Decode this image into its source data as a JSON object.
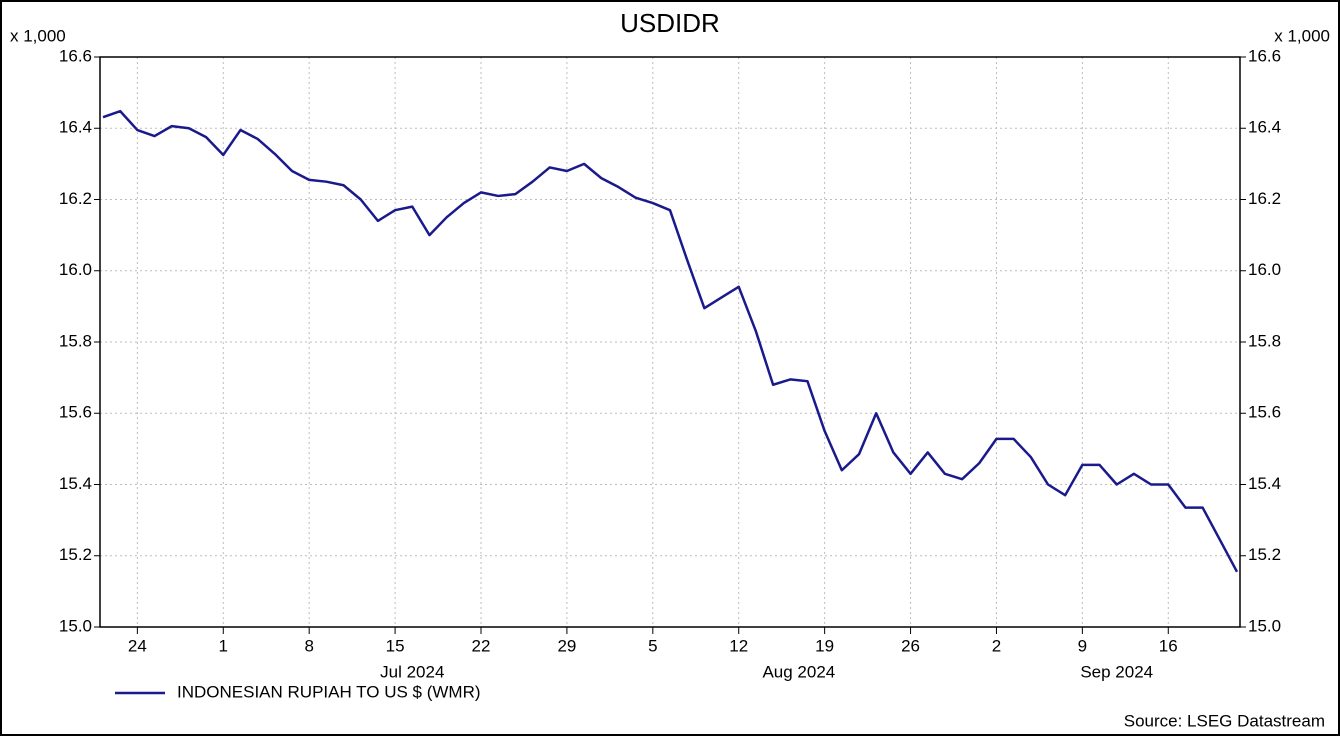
{
  "chart_data": {
    "type": "line",
    "title": "USDIDR",
    "y_unit": "x 1,000",
    "y2_unit": "x 1,000",
    "source": "Source: LSEG Datastream",
    "x": [
      "2024-06-20",
      "2024-06-21",
      "2024-06-24",
      "2024-06-25",
      "2024-06-26",
      "2024-06-27",
      "2024-06-28",
      "2024-07-01",
      "2024-07-02",
      "2024-07-03",
      "2024-07-04",
      "2024-07-05",
      "2024-07-08",
      "2024-07-09",
      "2024-07-10",
      "2024-07-11",
      "2024-07-12",
      "2024-07-15",
      "2024-07-16",
      "2024-07-17",
      "2024-07-18",
      "2024-07-19",
      "2024-07-22",
      "2024-07-23",
      "2024-07-24",
      "2024-07-25",
      "2024-07-26",
      "2024-07-29",
      "2024-07-30",
      "2024-07-31",
      "2024-08-01",
      "2024-08-02",
      "2024-08-05",
      "2024-08-06",
      "2024-08-07",
      "2024-08-08",
      "2024-08-09",
      "2024-08-12",
      "2024-08-13",
      "2024-08-14",
      "2024-08-15",
      "2024-08-16",
      "2024-08-19",
      "2024-08-20",
      "2024-08-21",
      "2024-08-22",
      "2024-08-23",
      "2024-08-26",
      "2024-08-27",
      "2024-08-28",
      "2024-08-29",
      "2024-08-30",
      "2024-09-02",
      "2024-09-03",
      "2024-09-04",
      "2024-09-05",
      "2024-09-06",
      "2024-09-09",
      "2024-09-10",
      "2024-09-11",
      "2024-09-12",
      "2024-09-13",
      "2024-09-16",
      "2024-09-17",
      "2024-09-18",
      "2024-09-19",
      "2024-09-20"
    ],
    "series": [
      {
        "name": "INDONESIAN RUPIAH TO US $ (WMR)",
        "color": "#1a1a8c",
        "values": [
          16.431,
          16.448,
          16.395,
          16.378,
          16.406,
          16.4,
          16.375,
          16.325,
          16.395,
          16.37,
          16.328,
          16.28,
          16.255,
          16.25,
          16.24,
          16.2,
          16.14,
          16.17,
          16.18,
          16.1,
          16.15,
          16.19,
          16.22,
          16.21,
          16.215,
          16.25,
          16.29,
          16.28,
          16.3,
          16.26,
          16.235,
          16.205,
          16.19,
          16.17,
          16.03,
          15.895,
          15.925,
          15.955,
          15.83,
          15.68,
          15.695,
          15.69,
          15.55,
          15.44,
          15.485,
          15.6,
          15.49,
          15.43,
          15.49,
          15.43,
          15.415,
          15.46,
          15.528,
          15.528,
          15.477,
          15.4,
          15.37,
          15.455,
          15.455,
          15.4,
          15.43,
          15.4,
          15.4,
          15.335,
          15.335,
          15.245,
          15.155
        ]
      }
    ],
    "xlim": [
      "2024-06-20",
      "2024-09-20"
    ],
    "xticks": [
      {
        "value": "2024-06-24",
        "label": "24"
      },
      {
        "value": "2024-07-01",
        "label": "1"
      },
      {
        "value": "2024-07-08",
        "label": "8"
      },
      {
        "value": "2024-07-15",
        "label": "15"
      },
      {
        "value": "2024-07-22",
        "label": "22"
      },
      {
        "value": "2024-07-29",
        "label": "29"
      },
      {
        "value": "2024-08-05",
        "label": "5"
      },
      {
        "value": "2024-08-12",
        "label": "12"
      },
      {
        "value": "2024-08-19",
        "label": "19"
      },
      {
        "value": "2024-08-26",
        "label": "26"
      },
      {
        "value": "2024-09-02",
        "label": "2"
      },
      {
        "value": "2024-09-09",
        "label": "9"
      },
      {
        "value": "2024-09-16",
        "label": "16"
      }
    ],
    "month_labels": [
      {
        "value": "2024-07",
        "label": "Jul 2024"
      },
      {
        "value": "2024-08",
        "label": "Aug 2024"
      },
      {
        "value": "2024-09",
        "label": "Sep 2024"
      }
    ],
    "ylim": [
      15.0,
      16.6
    ],
    "yticks": [
      {
        "value": 15.0,
        "label": "15.0"
      },
      15.2,
      15.4,
      15.6,
      15.8,
      {
        "value": 16.0,
        "label": "16.0"
      },
      16.2,
      16.4,
      16.6
    ],
    "grid": true
  }
}
